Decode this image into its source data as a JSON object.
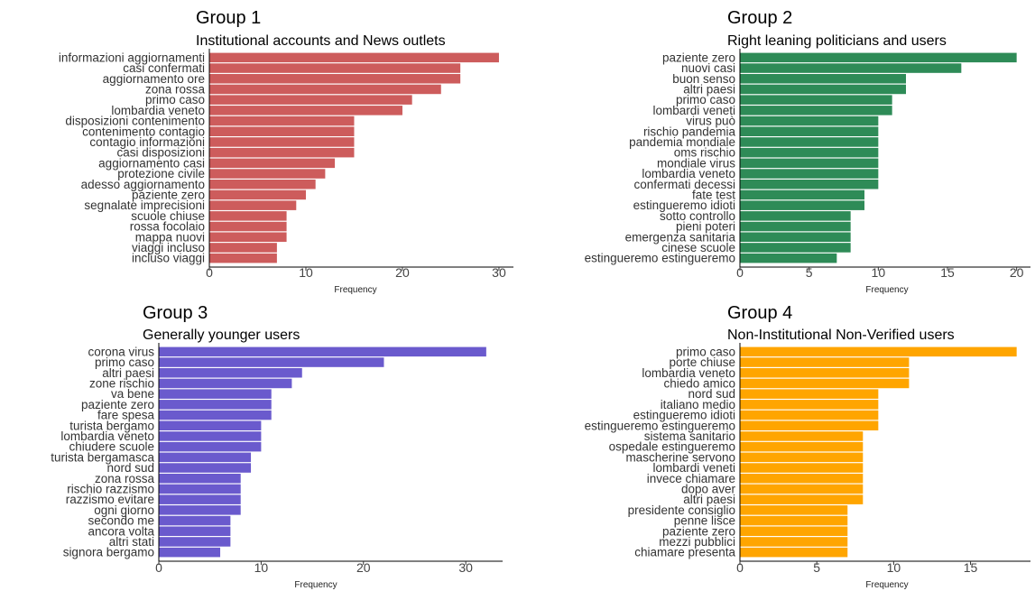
{
  "panels": [
    {
      "title": "Group 1",
      "subtitle": "Institutional accounts and News outlets",
      "color": "#cd5c5c",
      "x_ticks": [
        0,
        10,
        20,
        30
      ],
      "xlim": [
        0,
        31.5
      ],
      "xlabel": "Frequency"
    },
    {
      "title": "Group 2",
      "subtitle": "Right leaning politicians and users",
      "color": "#2e8b57",
      "x_ticks": [
        0,
        5,
        10,
        15,
        20
      ],
      "xlim": [
        0,
        21
      ],
      "xlabel": "Frequency"
    },
    {
      "title": "Group 3",
      "subtitle": "Generally younger users",
      "color": "#6a5acd",
      "x_ticks": [
        0,
        10,
        20,
        30
      ],
      "xlim": [
        0,
        33.6
      ],
      "xlabel": "Frequency"
    },
    {
      "title": "Group 4",
      "subtitle": "Non-Institutional Non-Verified users",
      "color": "#ffa500",
      "x_ticks": [
        0,
        5,
        10,
        15
      ],
      "xlim": [
        0,
        18.9
      ],
      "xlabel": "Frequency"
    }
  ],
  "chart_data": [
    {
      "type": "bar",
      "orientation": "horizontal",
      "title": "Group 1",
      "subtitle": "Institutional accounts and News outlets",
      "xlabel": "Frequency",
      "ylabel": "",
      "xlim": [
        0,
        31.5
      ],
      "grid": false,
      "categories": [
        "informazioni aggiornamenti",
        "casi confermati",
        "aggiornamento ore",
        "zona rossa",
        "primo caso",
        "lombardia veneto",
        "disposizioni contenimento",
        "contenimento contagio",
        "contagio informazioni",
        "casi disposizioni",
        "aggiornamento casi",
        "protezione civile",
        "adesso aggiornamento",
        "paziente zero",
        "segnalate imprecisioni",
        "scuole chiuse",
        "rossa focolaio",
        "mappa nuovi",
        "viaggi incluso",
        "incluso viaggi"
      ],
      "values": [
        30,
        26,
        26,
        24,
        21,
        20,
        15,
        15,
        15,
        15,
        13,
        12,
        11,
        10,
        9,
        8,
        8,
        8,
        7,
        7
      ]
    },
    {
      "type": "bar",
      "orientation": "horizontal",
      "title": "Group 2",
      "subtitle": "Right leaning politicians and users",
      "xlabel": "Frequency",
      "ylabel": "",
      "xlim": [
        0,
        21
      ],
      "grid": false,
      "categories": [
        "paziente zero",
        "nuovi casi",
        "buon senso",
        "altri paesi",
        "primo caso",
        "lombardi veneti",
        "virus può",
        "rischio pandemia",
        "pandemia mondiale",
        "oms rischio",
        "mondiale virus",
        "lombardia veneto",
        "confermati decessi",
        "fate test",
        "estingueremo idioti",
        "sotto controllo",
        "pieni poteri",
        "emergenza sanitaria",
        "cinese scuole",
        "estingueremo estingueremo"
      ],
      "values": [
        20,
        16,
        12,
        12,
        11,
        11,
        10,
        10,
        10,
        10,
        10,
        10,
        10,
        9,
        9,
        8,
        8,
        8,
        8,
        7
      ]
    },
    {
      "type": "bar",
      "orientation": "horizontal",
      "title": "Group 3",
      "subtitle": "Generally younger users",
      "xlabel": "Frequency",
      "ylabel": "",
      "xlim": [
        0,
        33.6
      ],
      "grid": false,
      "categories": [
        "corona virus",
        "primo caso",
        "altri paesi",
        "zone rischio",
        "va bene",
        "paziente zero",
        "fare spesa",
        "turista bergamo",
        "lombardia veneto",
        "chiudere scuole",
        "turista bergamasca",
        "nord sud",
        "zona rossa",
        "rischio razzismo",
        "razzismo evitare",
        "ogni giorno",
        "secondo me",
        "ancora volta",
        "altri stati",
        "signora bergamo"
      ],
      "values": [
        32,
        22,
        14,
        13,
        11,
        11,
        11,
        10,
        10,
        10,
        9,
        9,
        8,
        8,
        8,
        8,
        7,
        7,
        7,
        6
      ]
    },
    {
      "type": "bar",
      "orientation": "horizontal",
      "title": "Group 4",
      "subtitle": "Non-Institutional Non-Verified users",
      "xlabel": "Frequency",
      "ylabel": "",
      "xlim": [
        0,
        18.9
      ],
      "grid": false,
      "categories": [
        "primo caso",
        "porte chiuse",
        "lombardia veneto",
        "chiedo amico",
        "nord sud",
        "italiano medio",
        "estingueremo idioti",
        "estingueremo estingueremo",
        "sistema sanitario",
        "ospedale estingueremo",
        "mascherine servono",
        "lombardi veneti",
        "invece chiamare",
        "dopo aver",
        "altri paesi",
        "presidente consiglio",
        "penne lisce",
        "paziente zero",
        "mezzi pubblici",
        "chiamare presenta"
      ],
      "values": [
        18,
        11,
        11,
        11,
        9,
        9,
        9,
        9,
        8,
        8,
        8,
        8,
        8,
        8,
        8,
        7,
        7,
        7,
        7,
        7
      ]
    }
  ]
}
